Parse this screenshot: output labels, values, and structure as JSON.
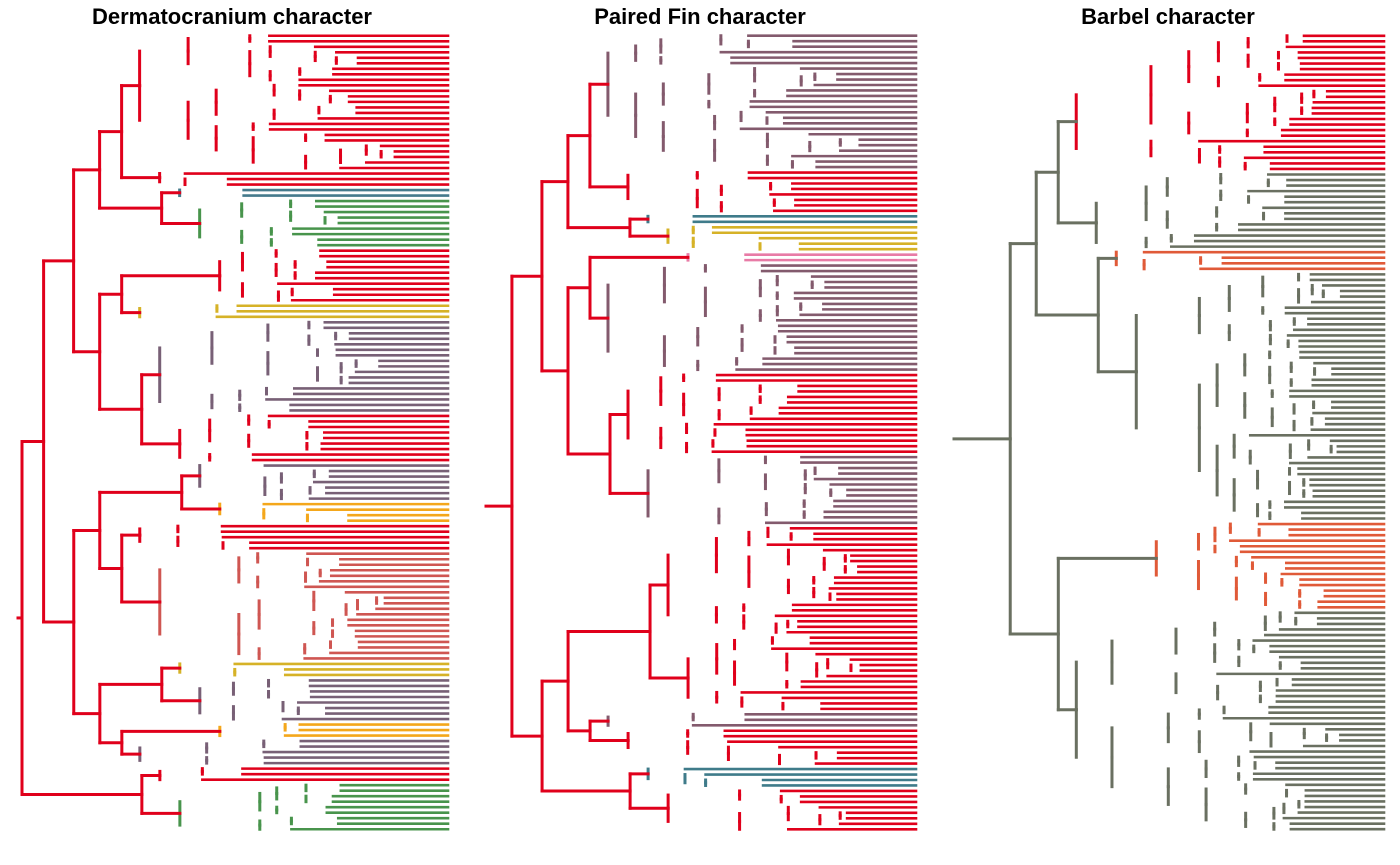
{
  "panels": [
    {
      "id": "dermatocranium",
      "title": "Dermatocranium character",
      "base_color": "#e0001b",
      "clades": [
        {
          "state": "#e0001b",
          "n": 25,
          "seed": 11
        },
        {
          "state": "#e0001b",
          "n": 3,
          "seed": 12
        },
        {
          "state": "#457a8c",
          "n": 2,
          "seed": 13
        },
        {
          "state": "#48944c",
          "n": 9,
          "seed": 14
        },
        {
          "state": "#e0001b",
          "n": 10,
          "seed": 15
        },
        {
          "state": "#d6b227",
          "n": 3,
          "seed": 16
        },
        {
          "state": "#786076",
          "n": 17,
          "seed": 17
        },
        {
          "state": "#e0001b",
          "n": 9,
          "seed": 18
        },
        {
          "state": "#786076",
          "n": 7,
          "seed": 19
        },
        {
          "state": "#f4a71b",
          "n": 4,
          "seed": 20
        },
        {
          "state": "#e0001b",
          "n": 5,
          "seed": 21
        },
        {
          "state": "#cf5652",
          "n": 20,
          "seed": 22
        },
        {
          "state": "#d6b227",
          "n": 3,
          "seed": 23
        },
        {
          "state": "#786076",
          "n": 8,
          "seed": 24
        },
        {
          "state": "#f4a71b",
          "n": 3,
          "seed": 25
        },
        {
          "state": "#786076",
          "n": 5,
          "seed": 26
        },
        {
          "state": "#e0001b",
          "n": 3,
          "seed": 27
        },
        {
          "state": "#48944c",
          "n": 9,
          "seed": 28
        }
      ]
    },
    {
      "id": "paired-fin",
      "title": "Paired Fin character",
      "base_color": "#e0001b",
      "clades": [
        {
          "state": "#835a6d",
          "n": 25,
          "seed": 31
        },
        {
          "state": "#e0001b",
          "n": 8,
          "seed": 32
        },
        {
          "state": "#3f7b8a",
          "n": 2,
          "seed": 33
        },
        {
          "state": "#d6b227",
          "n": 5,
          "seed": 34
        },
        {
          "state": "#e87ba6",
          "n": 2,
          "seed": 35
        },
        {
          "state": "#835a6d",
          "n": 20,
          "seed": 36
        },
        {
          "state": "#e0001b",
          "n": 15,
          "seed": 37
        },
        {
          "state": "#835a6d",
          "n": 13,
          "seed": 38
        },
        {
          "state": "#e0001b",
          "n": 20,
          "seed": 39
        },
        {
          "state": "#e0001b",
          "n": 14,
          "seed": 40
        },
        {
          "state": "#835a6d",
          "n": 3,
          "seed": 41
        },
        {
          "state": "#e0001b",
          "n": 7,
          "seed": 42
        },
        {
          "state": "#3f7b8a",
          "n": 4,
          "seed": 43
        },
        {
          "state": "#e0001b",
          "n": 8,
          "seed": 44
        }
      ]
    },
    {
      "id": "barbel",
      "title": "Barbel character",
      "base_color": "#6a7061",
      "clades": [
        {
          "state": "#e0001b",
          "n": 25,
          "seed": 51
        },
        {
          "state": "#6a7061",
          "n": 14,
          "seed": 52
        },
        {
          "state": "#e05a38",
          "n": 4,
          "seed": 53
        },
        {
          "state": "#6a7061",
          "n": 45,
          "seed": 54
        },
        {
          "state": "#e05a38",
          "n": 16,
          "seed": 55
        },
        {
          "state": "#6a7061",
          "n": 40,
          "seed": 56
        }
      ]
    }
  ]
}
